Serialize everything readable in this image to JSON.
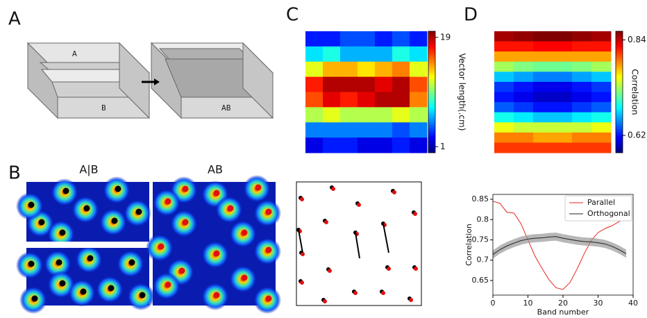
{
  "panels": {
    "a": "A",
    "b": "B",
    "c": "C",
    "d": "D"
  },
  "diagram": {
    "box_a": "A",
    "box_b": "B",
    "box_ab": "AB"
  },
  "maps": {
    "left_title": "A|B",
    "right_title": "AB"
  },
  "chart_data": [
    {
      "type": "heatmap",
      "colorbar_label": "Vector length(.cm)",
      "zlim": [
        0,
        20
      ],
      "zticks": [
        19,
        1
      ],
      "values": [
        [
          3,
          3,
          4,
          4,
          3,
          4,
          3
        ],
        [
          7,
          8,
          6,
          6,
          6,
          8,
          7
        ],
        [
          12,
          14,
          14,
          13,
          14,
          15,
          12
        ],
        [
          17,
          19,
          19,
          19,
          18,
          19,
          16
        ],
        [
          16,
          18,
          17,
          18,
          19,
          19,
          15
        ],
        [
          11,
          12,
          11,
          11,
          11,
          12,
          11
        ],
        [
          5,
          5,
          5,
          5,
          5,
          4,
          5
        ],
        [
          2,
          3,
          3,
          2,
          2,
          3,
          2
        ]
      ]
    },
    {
      "type": "heatmap",
      "colorbar_label": "Correlation",
      "zlim": [
        0.58,
        0.86
      ],
      "zticks": [
        0.84,
        0.62
      ],
      "values": [
        [
          0.85,
          0.855,
          0.86,
          0.86,
          0.855,
          0.85
        ],
        [
          0.82,
          0.82,
          0.825,
          0.825,
          0.82,
          0.82
        ],
        [
          0.78,
          0.78,
          0.78,
          0.78,
          0.78,
          0.78
        ],
        [
          0.73,
          0.72,
          0.715,
          0.715,
          0.72,
          0.73
        ],
        [
          0.67,
          0.66,
          0.65,
          0.65,
          0.66,
          0.67
        ],
        [
          0.63,
          0.62,
          0.61,
          0.61,
          0.62,
          0.63
        ],
        [
          0.62,
          0.61,
          0.6,
          0.6,
          0.61,
          0.62
        ],
        [
          0.64,
          0.63,
          0.62,
          0.62,
          0.63,
          0.64
        ],
        [
          0.69,
          0.68,
          0.67,
          0.67,
          0.68,
          0.69
        ],
        [
          0.75,
          0.74,
          0.74,
          0.74,
          0.74,
          0.75
        ],
        [
          0.79,
          0.79,
          0.78,
          0.78,
          0.79,
          0.79
        ],
        [
          0.81,
          0.81,
          0.81,
          0.81,
          0.81,
          0.81
        ]
      ]
    },
    {
      "type": "line",
      "x_label": "Band number",
      "y_label": "Correlation",
      "x": [
        0,
        2,
        4,
        6,
        8,
        10,
        12,
        14,
        16,
        18,
        20,
        22,
        24,
        26,
        28,
        30,
        32,
        34,
        36,
        38
      ],
      "xlim": [
        0,
        40
      ],
      "ylim": [
        0.614,
        0.862
      ],
      "xticks": [
        0,
        10,
        20,
        30,
        40
      ],
      "yticks": [
        0.65,
        0.7,
        0.75,
        0.8,
        0.85
      ],
      "legend": "upper right",
      "series": [
        {
          "name": "Parallel",
          "color": "#e8251f",
          "values": [
            0.845,
            0.84,
            0.818,
            0.816,
            0.79,
            0.75,
            0.71,
            0.68,
            0.652,
            0.632,
            0.628,
            0.645,
            0.678,
            0.715,
            0.748,
            0.768,
            0.778,
            0.785,
            0.795,
            0.81
          ]
        },
        {
          "name": "Orthogonal",
          "color": "#222222",
          "band_color": "#999999",
          "values": [
            0.714,
            0.726,
            0.735,
            0.742,
            0.748,
            0.752,
            0.754,
            0.755,
            0.757,
            0.758,
            0.754,
            0.751,
            0.748,
            0.746,
            0.745,
            0.743,
            0.74,
            0.734,
            0.726,
            0.716
          ],
          "errors": [
            0.01,
            0.01,
            0.01,
            0.01,
            0.01,
            0.01,
            0.01,
            0.01,
            0.01,
            0.01,
            0.01,
            0.01,
            0.01,
            0.01,
            0.01,
            0.01,
            0.01,
            0.01,
            0.01,
            0.01
          ]
        }
      ]
    }
  ]
}
